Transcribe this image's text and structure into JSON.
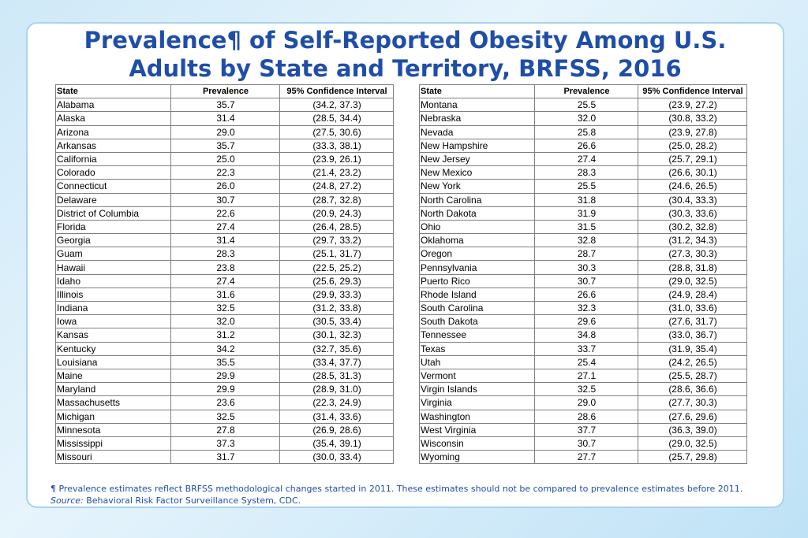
{
  "title_line1": "Prevalence¶ of Self-Reported Obesity Among U.S.",
  "title_line2": "Adults by State and Territory, BRFSS, 2016",
  "headers": {
    "state": "State",
    "prevalence": "Prevalence",
    "ci": "95% Confidence Interval"
  },
  "left_rows": [
    [
      "Alabama",
      "35.7",
      "(34.2, 37.3)"
    ],
    [
      "Alaska",
      "31.4",
      "(28.5, 34.4)"
    ],
    [
      "Arizona",
      "29.0",
      "(27.5, 30.6)"
    ],
    [
      "Arkansas",
      "35.7",
      "(33.3, 38.1)"
    ],
    [
      "California",
      "25.0",
      "(23.9, 26.1)"
    ],
    [
      "Colorado",
      "22.3",
      "(21.4, 23.2)"
    ],
    [
      "Connecticut",
      "26.0",
      "(24.8, 27.2)"
    ],
    [
      "Delaware",
      "30.7",
      "(28.7, 32.8)"
    ],
    [
      "District of Columbia",
      "22.6",
      "(20.9, 24.3)"
    ],
    [
      "Florida",
      "27.4",
      "(26.4, 28.5)"
    ],
    [
      "Georgia",
      "31.4",
      "(29.7, 33.2)"
    ],
    [
      "Guam",
      "28.3",
      "(25.1, 31.7)"
    ],
    [
      "Hawaii",
      "23.8",
      "(22.5, 25.2)"
    ],
    [
      "Idaho",
      "27.4",
      "(25.6, 29.3)"
    ],
    [
      "Illinois",
      "31.6",
      "(29.9, 33.3)"
    ],
    [
      "Indiana",
      "32.5",
      "(31.2, 33.8)"
    ],
    [
      "Iowa",
      "32.0",
      "(30.5, 33.4)"
    ],
    [
      "Kansas",
      "31.2",
      "(30.1, 32.3)"
    ],
    [
      "Kentucky",
      "34.2",
      "(32.7, 35.6)"
    ],
    [
      "Louisiana",
      "35.5",
      "(33.4, 37.7)"
    ],
    [
      "Maine",
      "29.9",
      "(28.5, 31.3)"
    ],
    [
      "Maryland",
      "29.9",
      "(28.9, 31.0)"
    ],
    [
      "Massachusetts",
      "23.6",
      "(22.3, 24.9)"
    ],
    [
      "Michigan",
      "32.5",
      "(31.4, 33.6)"
    ],
    [
      "Minnesota",
      "27.8",
      "(26.9, 28.6)"
    ],
    [
      "Mississippi",
      "37.3",
      "(35.4, 39.1)"
    ],
    [
      "Missouri",
      "31.7",
      "(30.0, 33.4)"
    ]
  ],
  "right_rows": [
    [
      "Montana",
      "25.5",
      "(23.9, 27.2)"
    ],
    [
      "Nebraska",
      "32.0",
      "(30.8, 33.2)"
    ],
    [
      "Nevada",
      "25.8",
      "(23.9, 27.8)"
    ],
    [
      "New Hampshire",
      "26.6",
      "(25.0, 28.2)"
    ],
    [
      "New Jersey",
      "27.4",
      "(25.7, 29.1)"
    ],
    [
      "New Mexico",
      "28.3",
      "(26.6, 30.1)"
    ],
    [
      "New York",
      "25.5",
      "(24.6, 26.5)"
    ],
    [
      "North Carolina",
      "31.8",
      "(30.4, 33.3)"
    ],
    [
      "North Dakota",
      "31.9",
      "(30.3, 33.6)"
    ],
    [
      "Ohio",
      "31.5",
      "(30.2, 32.8)"
    ],
    [
      "Oklahoma",
      "32.8",
      "(31.2, 34.3)"
    ],
    [
      "Oregon",
      "28.7",
      "(27.3, 30.3)"
    ],
    [
      "Pennsylvania",
      "30.3",
      "(28.8, 31.8)"
    ],
    [
      "Puerto Rico",
      "30.7",
      "(29.0, 32.5)"
    ],
    [
      "Rhode Island",
      "26.6",
      "(24.9, 28.4)"
    ],
    [
      "South Carolina",
      "32.3",
      "(31.0, 33.6)"
    ],
    [
      "South Dakota",
      "29.6",
      "(27.6, 31.7)"
    ],
    [
      "Tennessee",
      "34.8",
      "(33.0, 36.7)"
    ],
    [
      "Texas",
      "33.7",
      "(31.9, 35.4)"
    ],
    [
      "Utah",
      "25.4",
      "(24.2, 26.5)"
    ],
    [
      "Vermont",
      "27.1",
      "(25.5, 28.7)"
    ],
    [
      "Virgin Islands",
      "32.5",
      "(28.6, 36.6)"
    ],
    [
      "Virginia",
      "29.0",
      "(27.7, 30.3)"
    ],
    [
      "Washington",
      "28.6",
      "(27.6, 29.6)"
    ],
    [
      "West Virginia",
      "37.7",
      "(36.3, 39.0)"
    ],
    [
      "Wisconsin",
      "30.7",
      "(29.0, 32.5)"
    ],
    [
      "Wyoming",
      "27.7",
      "(25.7, 29.8)"
    ]
  ],
  "footnote_line1": "¶ Prevalence estimates reflect BRFSS methodological changes started in 2011. These estimates should not be compared to prevalence estimates before 2011.",
  "source_label": "Source:",
  "source_text": " Behavioral Risk Factor Surveillance System, CDC."
}
